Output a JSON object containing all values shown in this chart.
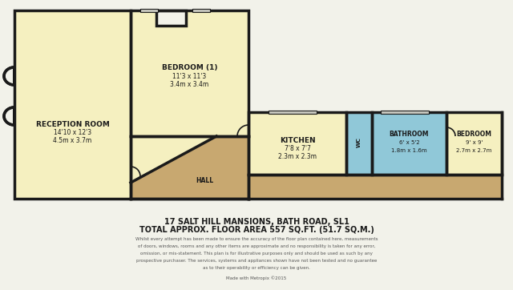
{
  "bg_color": "#f2f2ea",
  "wall_color": "#1a1a1a",
  "lw": 2.5,
  "room_colors": {
    "reception": "#f5f0c0",
    "bedroom1": "#f5f0c0",
    "hall": "#c8a870",
    "kitchen": "#f5f0c0",
    "wc": "#90c8d8",
    "bathroom": "#90c8d8",
    "bedroom2": "#f5f0c0",
    "corridor": "#c8a870"
  },
  "title_line1": "17 SALT HILL MANSIONS, BATH ROAD, SL1",
  "title_line2": "TOTAL APPROX. FLOOR AREA 557 SQ.FT. (51.7 SQ.M.)",
  "disclaimer": "Whilst every attempt has been made to ensure the accuracy of the floor plan contained here, measurements\nof doors, windows, rooms and any other items are approximate and no responsibility is taken for any error,\nomission, or mis-statement. This plan is for illustrative purposes only and should be used as such by any\nprospective purchaser. The services, systems and appliances shown have not been tested and no guarantee\nas to their operability or efficiency can be given.",
  "made_with": "Made with Metropix ©2015",
  "rooms": {
    "reception": {
      "label": "RECEPTION ROOM",
      "sublabel": "14'10 x 12'3",
      "sublabel2": "4.5m x 3.7m"
    },
    "bedroom1": {
      "label": "BEDROOM (1)",
      "sublabel": "11'3 x 11'3",
      "sublabel2": "3.4m x 3.4m"
    },
    "hall": {
      "label": "HALL"
    },
    "kitchen": {
      "label": "KITCHEN",
      "sublabel": "7'8 x 7'7",
      "sublabel2": "2.3m x 2.3m"
    },
    "wc": {
      "label": "WC"
    },
    "bathroom": {
      "label": "BATHROOM",
      "sublabel": "6' x 5'2",
      "sublabel2": "1.8m x 1.6m"
    },
    "bedroom2": {
      "label": "BEDROOM",
      "sublabel": "9' x 9'",
      "sublabel2": "2.7m x 2.7m"
    }
  }
}
